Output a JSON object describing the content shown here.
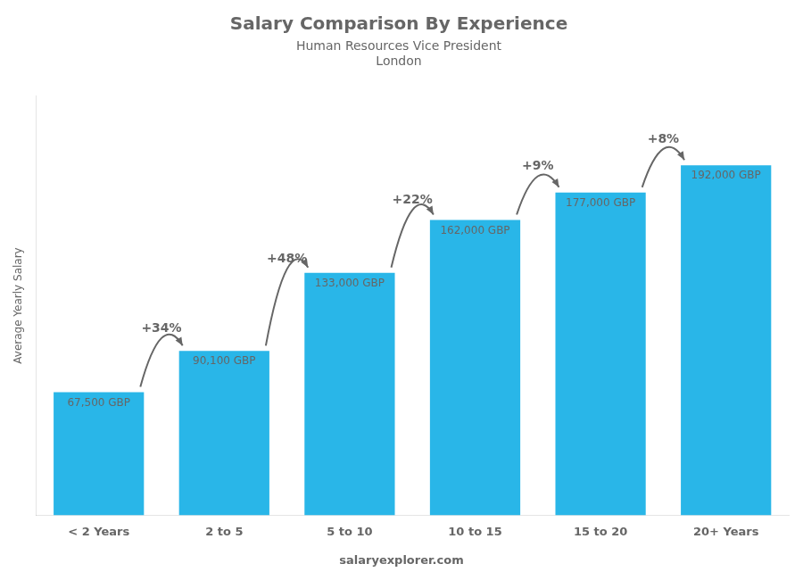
{
  "chart_data": {
    "type": "bar",
    "title": "Salary Comparison By Experience",
    "subtitle": [
      "Human Resources Vice President",
      "London"
    ],
    "ylabel": "Average Yearly Salary",
    "categories": [
      "< 2 Years",
      "2 to 5",
      "5 to 10",
      "10 to 15",
      "15 to 20",
      "20+ Years"
    ],
    "values": [
      67500,
      90100,
      133000,
      162000,
      177000,
      192000
    ],
    "value_labels": [
      "67,500 GBP",
      "90,100 GBP",
      "133,000 GBP",
      "162,000 GBP",
      "177,000 GBP",
      "192,000 GBP"
    ],
    "data_labels": true,
    "pct_labels": [
      "+34%",
      "+48%",
      "+22%",
      "+9%",
      "+8%"
    ],
    "annotations": [
      "salaryexplorer.com"
    ],
    "color": "#29B6E8",
    "ylim": [
      0,
      230000
    ],
    "tick_labels": "x",
    "grid": false
  }
}
